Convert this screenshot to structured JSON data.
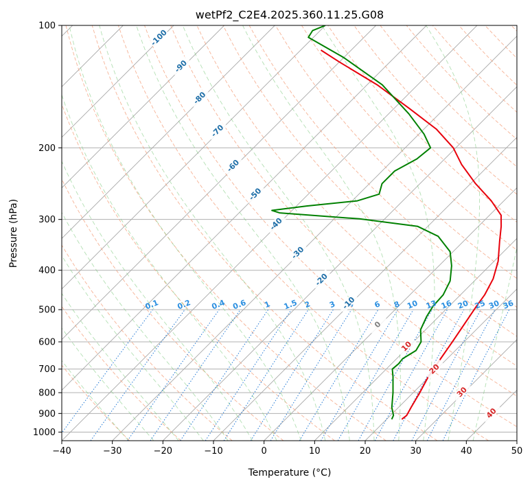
{
  "chart_data": {
    "type": "line",
    "chart_kind": "Skew-T log-P thermodynamic diagram",
    "title": "wetPf2_C2E4.2025.360.11.25.G08",
    "xlabel": "Temperature (°C)",
    "ylabel": "Pressure (hPa)",
    "xlim": [
      -40,
      50
    ],
    "ylim": [
      1050,
      100
    ],
    "y_scale": "log",
    "grid": true,
    "x_ticks": [
      -40,
      -30,
      -20,
      -10,
      0,
      10,
      20,
      30,
      40,
      50
    ],
    "y_ticks": [
      100,
      200,
      300,
      400,
      500,
      600,
      700,
      800,
      900,
      1000
    ],
    "isotherm_labels": [
      {
        "t": -100,
        "p": 108
      },
      {
        "t": -90,
        "p": 127
      },
      {
        "t": -80,
        "p": 152
      },
      {
        "t": -70,
        "p": 183
      },
      {
        "t": -60,
        "p": 223
      },
      {
        "t": -50,
        "p": 262
      },
      {
        "t": -40,
        "p": 310
      },
      {
        "t": -30,
        "p": 365
      },
      {
        "t": -20,
        "p": 425
      },
      {
        "t": -10,
        "p": 485
      },
      {
        "t": 0,
        "p": 548
      },
      {
        "t": 10,
        "p": 620
      },
      {
        "t": 20,
        "p": 705
      },
      {
        "t": 30,
        "p": 803
      },
      {
        "t": 40,
        "p": 905
      }
    ],
    "mixing_ratio_labels": [
      "0.1",
      "0.2",
      "0.4",
      "0.6",
      "1",
      "1.5",
      "2",
      "3",
      "4",
      "6",
      "8",
      "10",
      "13",
      "16",
      "20",
      "25",
      "30",
      "36"
    ],
    "series": [
      {
        "color": "#e8000b",
        "points": [
          [
            23,
            930
          ],
          [
            23.2,
            910
          ],
          [
            22.5,
            870
          ],
          [
            21.3,
            800
          ],
          [
            19.8,
            730
          ],
          [
            18.7,
            660
          ],
          [
            17.7,
            600
          ],
          [
            16.3,
            530
          ],
          [
            15.4,
            490
          ],
          [
            14.8,
            460
          ],
          [
            13.3,
            420
          ],
          [
            10.8,
            380
          ],
          [
            7.2,
            340
          ],
          [
            4.5,
            312
          ],
          [
            2.3,
            293
          ],
          [
            -2.5,
            270
          ],
          [
            -9,
            245
          ],
          [
            -15.5,
            220
          ],
          [
            -20.5,
            200
          ],
          [
            -27.5,
            180
          ],
          [
            -37,
            160
          ],
          [
            -48,
            140
          ],
          [
            -60,
            123
          ],
          [
            -66,
            115
          ]
        ]
      },
      {
        "color": "#008000",
        "points": [
          [
            21,
            930
          ],
          [
            20.6,
            910
          ],
          [
            18.7,
            870
          ],
          [
            16,
            800
          ],
          [
            12.8,
            730
          ],
          [
            11.2,
            700
          ],
          [
            11.4,
            680
          ],
          [
            11.2,
            660
          ],
          [
            12.2,
            630
          ],
          [
            11.5,
            600
          ],
          [
            9,
            560
          ],
          [
            7.6,
            520
          ],
          [
            6.8,
            490
          ],
          [
            6.6,
            460
          ],
          [
            5.2,
            425
          ],
          [
            2.5,
            390
          ],
          [
            -0.6,
            360
          ],
          [
            -6,
            330
          ],
          [
            -12,
            312
          ],
          [
            -25,
            299
          ],
          [
            -42,
            289
          ],
          [
            -44,
            285
          ],
          [
            -38,
            278
          ],
          [
            -29,
            270
          ],
          [
            -26,
            260
          ],
          [
            -27.5,
            245
          ],
          [
            -27.5,
            228
          ],
          [
            -25.5,
            213
          ],
          [
            -25,
            200
          ],
          [
            -29,
            185
          ],
          [
            -36,
            165
          ],
          [
            -47,
            140
          ],
          [
            -60,
            120
          ],
          [
            -71,
            107
          ],
          [
            -71.5,
            103
          ],
          [
            -70,
            100
          ]
        ]
      }
    ]
  }
}
